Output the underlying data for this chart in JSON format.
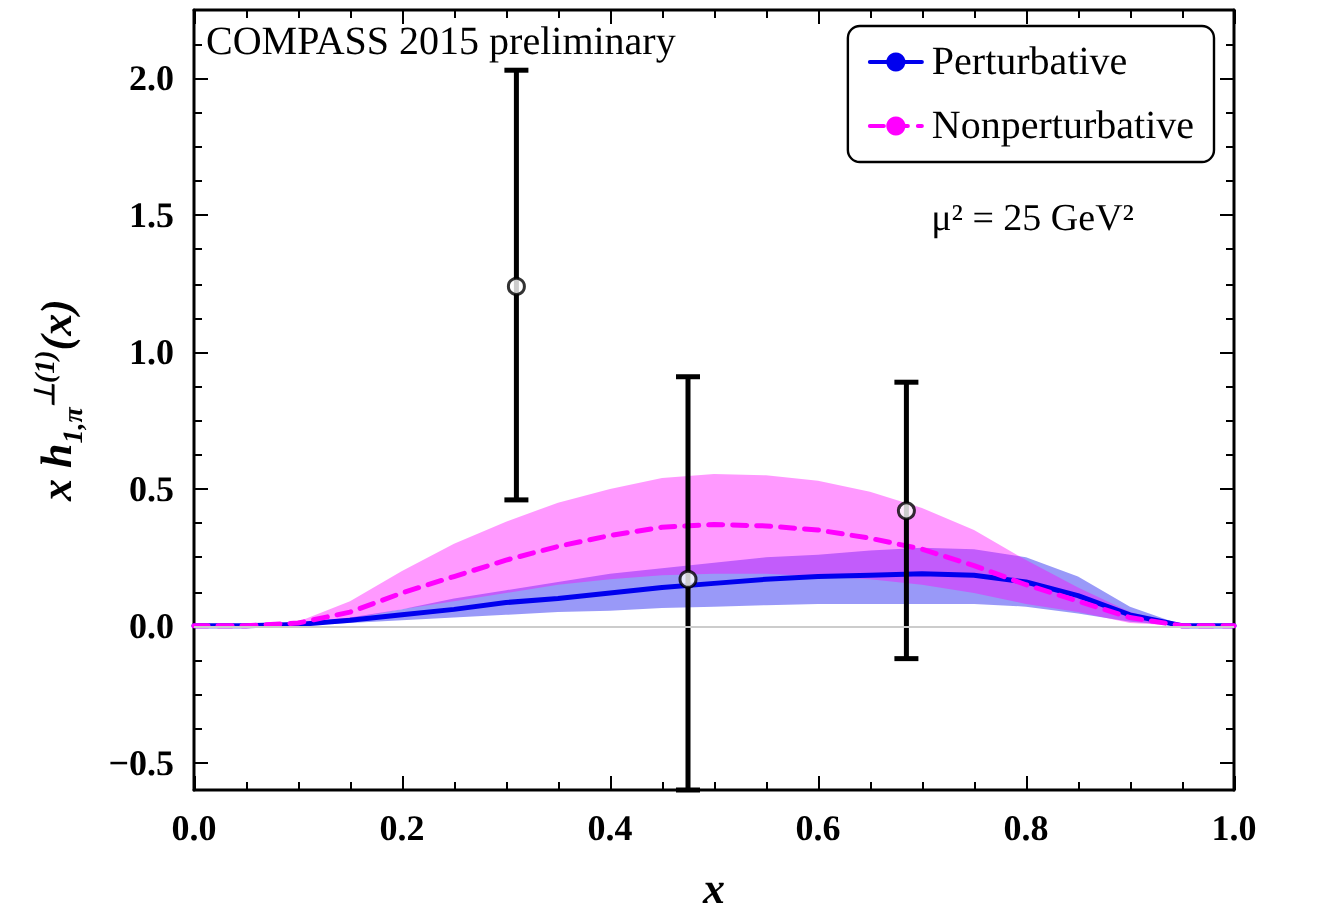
{
  "chart_data": {
    "type": "line",
    "xlabel": "x",
    "ylabel": "x h$_{1,π}$$^{⊥(1)}$(x)",
    "annotations": [
      "COMPASS 2015 preliminary",
      "μ² = 25 GeV²"
    ],
    "x": [
      0,
      0.05,
      0.1,
      0.15,
      0.2,
      0.25,
      0.3,
      0.35,
      0.4,
      0.45,
      0.5,
      0.55,
      0.6,
      0.65,
      0.7,
      0.75,
      0.8,
      0.85,
      0.9,
      0.95,
      1
    ],
    "series": [
      {
        "name": "Perturbative",
        "color": "#0000ee",
        "line_style": "solid",
        "values": [
          0,
          0,
          0.005,
          0.02,
          0.04,
          0.06,
          0.085,
          0.1,
          0.12,
          0.14,
          0.155,
          0.17,
          0.18,
          0.185,
          0.19,
          0.185,
          0.16,
          0.11,
          0.04,
          0,
          0
        ],
        "lower": [
          0,
          0,
          0.003,
          0.01,
          0.02,
          0.03,
          0.04,
          0.05,
          0.055,
          0.065,
          0.07,
          0.075,
          0.08,
          0.08,
          0.08,
          0.08,
          0.07,
          0.045,
          0.015,
          0,
          0
        ],
        "upper": [
          0,
          0,
          0.008,
          0.03,
          0.06,
          0.1,
          0.13,
          0.16,
          0.19,
          0.21,
          0.23,
          0.25,
          0.26,
          0.275,
          0.285,
          0.28,
          0.25,
          0.18,
          0.07,
          0.003,
          0
        ]
      },
      {
        "name": "Nonperturbative",
        "color": "#ff00ff",
        "line_style": "dashed",
        "values": [
          0,
          0,
          0.01,
          0.05,
          0.12,
          0.18,
          0.24,
          0.29,
          0.33,
          0.36,
          0.37,
          0.365,
          0.35,
          0.32,
          0.28,
          0.22,
          0.15,
          0.09,
          0.03,
          0,
          0
        ],
        "lower": [
          0,
          0,
          0.005,
          0.025,
          0.06,
          0.09,
          0.12,
          0.15,
          0.17,
          0.185,
          0.19,
          0.19,
          0.18,
          0.17,
          0.15,
          0.12,
          0.08,
          0.05,
          0.01,
          0,
          0
        ],
        "upper": [
          0,
          0,
          0.015,
          0.09,
          0.2,
          0.3,
          0.38,
          0.45,
          0.5,
          0.54,
          0.555,
          0.55,
          0.53,
          0.49,
          0.43,
          0.35,
          0.24,
          0.14,
          0.05,
          0.002,
          0
        ]
      },
      {
        "type": "scatter",
        "color": "#000000",
        "marker": "circle",
        "x": [
          0.31,
          0.475,
          0.685
        ],
        "values": [
          1.24,
          0.17,
          0.42
        ],
        "errors": [
          [
            0.46,
            2.03
          ],
          [
            -0.6,
            0.91
          ],
          [
            -0.12,
            0.89
          ]
        ]
      }
    ],
    "xlim": [
      0,
      1
    ],
    "xticks": [
      {
        "value": 0,
        "label": "0.0"
      },
      {
        "value": 0.2,
        "label": "0.2"
      },
      {
        "value": 0.4,
        "label": "0.4"
      },
      {
        "value": 0.6,
        "label": "0.6"
      },
      {
        "value": 0.8,
        "label": "0.8"
      },
      {
        "value": 1,
        "label": "1.0"
      }
    ],
    "ylim": [
      -0.6,
      2.25
    ],
    "yticks": [
      {
        "value": -0.5,
        "label": "−0.5"
      },
      {
        "value": 0,
        "label": "0.0"
      },
      {
        "value": 0.5,
        "label": "0.5"
      },
      {
        "value": 1,
        "label": "1.0"
      },
      {
        "value": 1.5,
        "label": "1.5"
      },
      {
        "value": 2,
        "label": "2.0"
      }
    ],
    "ref_lines": [
      {
        "axis": "y",
        "value": 0,
        "color": "#cccccc"
      }
    ],
    "grid": false,
    "legend": "top right"
  }
}
